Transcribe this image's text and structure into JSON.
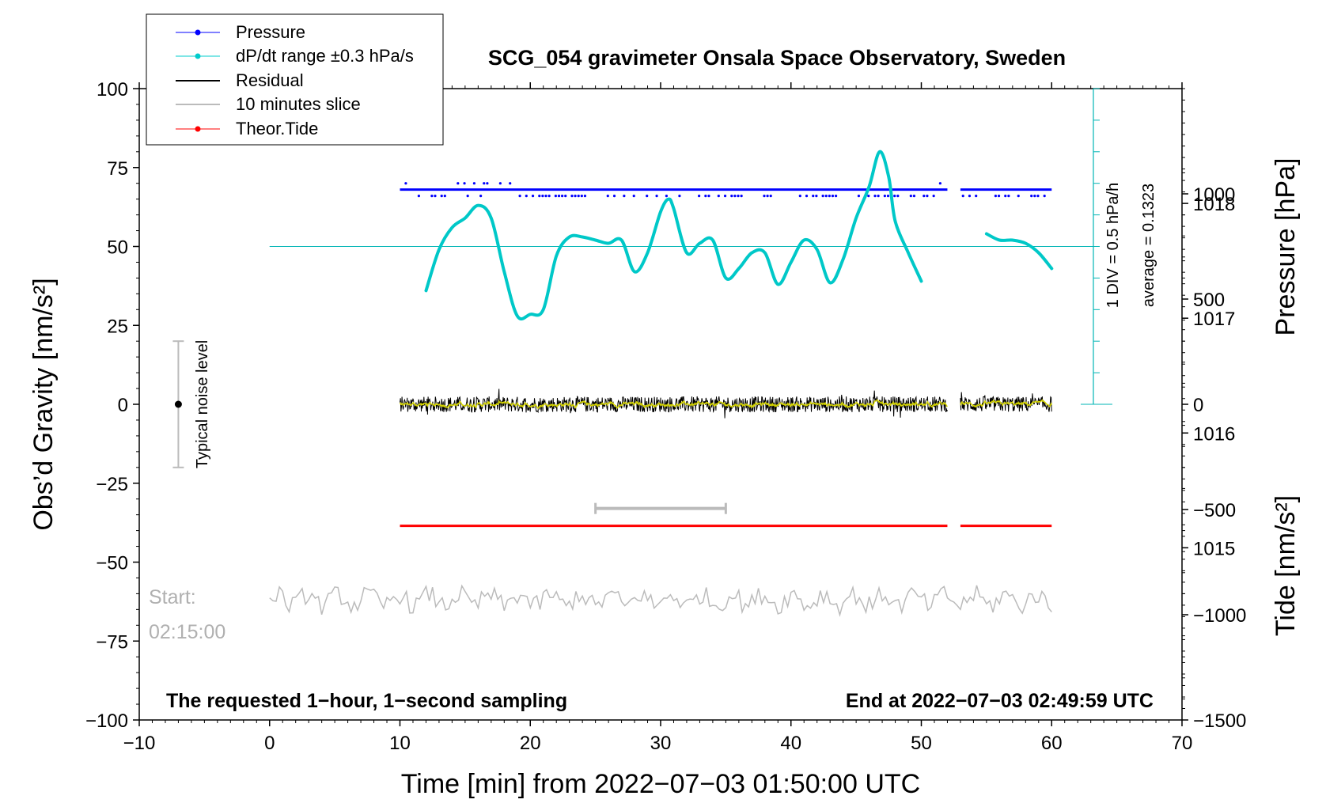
{
  "chart_data": {
    "type": "line",
    "title": "SCG_054 gravimeter Onsala Space Observatory, Sweden",
    "xlabel": "Time [min] from 2022−07−03 01:50:00 UTC",
    "ylabel_left": "Obs’d Gravity [nm/s²]",
    "ylabel_pressure": "Pressure [hPa]",
    "ylabel_tide": "Tide [nm/s²]",
    "xlim": [
      -10,
      70
    ],
    "ylim": [
      -100,
      100
    ],
    "pressure_lim": [
      1013.5,
      1019.0
    ],
    "tide_lim": [
      -1500,
      1500
    ],
    "x_ticks": [
      -10,
      0,
      10,
      20,
      30,
      40,
      50,
      60,
      70
    ],
    "x_tick_labels": [
      "−10",
      "0",
      "10",
      "20",
      "30",
      "40",
      "50",
      "60",
      "70"
    ],
    "y_ticks": [
      -100,
      -75,
      -50,
      -25,
      0,
      25,
      50,
      75,
      100
    ],
    "y_tick_labels": [
      "−100",
      "−75",
      "−50",
      "−25",
      "0",
      "25",
      "50",
      "75",
      "100"
    ],
    "pressure_ticks": [
      1015,
      1016,
      1017,
      1018
    ],
    "pressure_tick_labels": [
      "1015",
      "1016",
      "1017",
      "1018"
    ],
    "tide_ticks": [
      -1500,
      -1000,
      -500,
      0,
      500,
      1000
    ],
    "tide_tick_labels": [
      "−1500",
      "−1000",
      "−500",
      "0",
      "500",
      "1000"
    ],
    "legend": [
      {
        "label": "Pressure",
        "color": "#0000ff",
        "style": "line-dot"
      },
      {
        "label": "dP/dt range ±0.3 hPa/s",
        "color": "#00cccc",
        "style": "line-dot"
      },
      {
        "label": "Residual",
        "color": "#000000",
        "style": "line"
      },
      {
        "label": "10 minutes slice",
        "color": "#bbbbbb",
        "style": "line"
      },
      {
        "label": "Theor.Tide",
        "color": "#ff0000",
        "style": "line-dot"
      }
    ],
    "series": [
      {
        "name": "dP/dt",
        "color": "#00c8c8",
        "x": [
          12,
          13,
          14,
          15,
          16,
          17,
          18,
          19,
          20,
          21,
          22,
          23,
          24,
          25,
          26,
          27,
          28,
          29,
          30,
          30.6,
          31,
          32,
          33,
          34,
          35,
          36,
          37,
          38,
          39,
          40,
          41,
          42,
          43,
          44,
          45,
          46,
          46.8,
          47.5,
          48,
          49,
          50
        ],
        "y": [
          36,
          49,
          56,
          59,
          63,
          59,
          42,
          28,
          28.5,
          30,
          47,
          53,
          53,
          52,
          51,
          52,
          42,
          48,
          61,
          65,
          62,
          48,
          51,
          52,
          40,
          43,
          48,
          48,
          38,
          45,
          52,
          49,
          38.5,
          46,
          59,
          69,
          80,
          72,
          58,
          48,
          39
        ]
      },
      {
        "name": "dP/dt (after gap)",
        "color": "#00c8c8",
        "x": [
          55,
          56,
          57,
          58,
          59,
          60
        ],
        "y": [
          54,
          52,
          52,
          51,
          48,
          43
        ]
      }
    ],
    "dpdt_reference_y": 50,
    "pressure_level_value": 68,
    "pressure_dots_high": 70,
    "pressure_dots_low": 66,
    "pressure_segments": [
      [
        10,
        52
      ],
      [
        53,
        60
      ]
    ],
    "residual_segments": [
      [
        10,
        52
      ],
      [
        53,
        60
      ]
    ],
    "residual_amplitude": 2.5,
    "tide_value": -38.5,
    "tide_segments": [
      [
        10,
        52
      ],
      [
        53,
        60
      ]
    ],
    "slice_bracket": {
      "x_start": 25,
      "x_end": 35,
      "y": -33
    },
    "slice_trace": {
      "x_start": 0,
      "x_end": 60,
      "y_center": -62,
      "amplitude": 3
    },
    "noise_level": {
      "x": -7,
      "y": 0,
      "half_range": 20,
      "label": "Typical noise level"
    },
    "annotations": {
      "start_label": "Start:",
      "start_time": "02:15:00",
      "bottom_left": "The requested 1−hour, 1−second sampling",
      "bottom_right": "End at 2022−07−03 02:49:59 UTC",
      "div_label": "1 DIV = 0.5 hPa/h",
      "average_label": "average = 0.1323"
    }
  }
}
